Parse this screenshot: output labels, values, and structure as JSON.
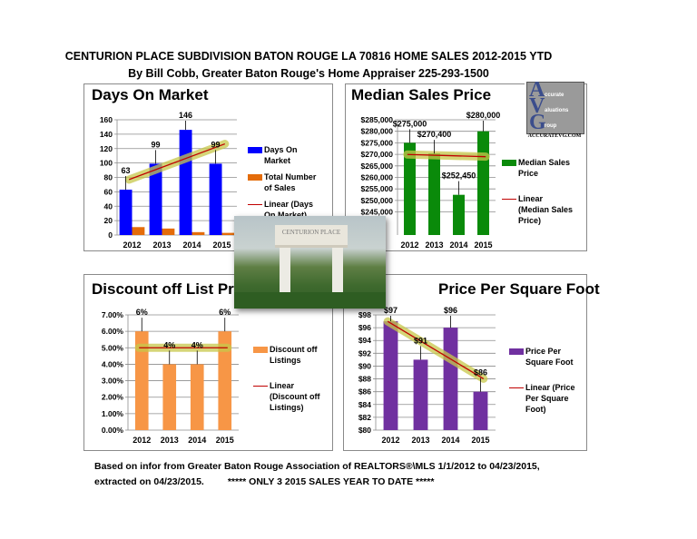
{
  "header": {
    "title": "CENTURION PLACE SUBDIVISION BATON ROUGE LA 70816 HOME SALES 2012-2015 YTD",
    "subtitle": "By Bill Cobb, Greater Baton Rouge's Home Appraiser 225-293-1500"
  },
  "footer": {
    "line1": "Based on infor from Greater Baton Rouge Association of REALTORS®\\MLS 1/1/2012 to 04/23/2015,",
    "line2a": "extracted on 04/23/2015.",
    "line2b": "***** ONLY 3 2015 SALES YEAR TO DATE *****"
  },
  "photo": {
    "sign_text": "CENTURION PLACE"
  },
  "logo": {
    "letters": [
      "A",
      "V",
      "G"
    ],
    "words": [
      "ccurate",
      "aluations",
      "roup"
    ],
    "url": "ACCURATEVG.COM"
  },
  "chart_data": [
    {
      "type": "bar",
      "title": "Days On Market",
      "categories": [
        "2012",
        "2013",
        "2014",
        "2015"
      ],
      "ylim": [
        0,
        160
      ],
      "yticks": [
        "0",
        "20",
        "40",
        "60",
        "80",
        "100",
        "120",
        "140",
        "160"
      ],
      "ytick_values": [
        0,
        20,
        40,
        60,
        80,
        100,
        120,
        140,
        160
      ],
      "grid": true,
      "legend": "right",
      "series": [
        {
          "name": "Days On Market",
          "values": [
            63,
            99,
            146,
            99
          ],
          "color": "#0000ff",
          "data_labels": [
            "63",
            "99",
            "146",
            "99"
          ]
        },
        {
          "name": "Total Number of Sales",
          "values": [
            11,
            9,
            4,
            3
          ],
          "color": "#e46c0a"
        }
      ],
      "trendline": {
        "name": "Linear (Days On Market)",
        "type": "linear",
        "of_series": 0,
        "color": "#c00000",
        "glow": "#c8c84a"
      }
    },
    {
      "type": "bar",
      "title": "Median Sales Price",
      "categories": [
        "2012",
        "2013",
        "2014",
        "2015"
      ],
      "ylim": [
        235000,
        285000
      ],
      "yticks": [
        "$245,000",
        "$250,000",
        "$255,000",
        "$260,000",
        "$265,000",
        "$270,000",
        "$275,000",
        "$280,000",
        "$285,000"
      ],
      "ytick_values": [
        245000,
        250000,
        255000,
        260000,
        265000,
        270000,
        275000,
        280000,
        285000
      ],
      "grid": true,
      "legend": "right",
      "series": [
        {
          "name": "Median Sales Price",
          "values": [
            275000,
            270400,
            252450,
            280000
          ],
          "color": "#0a8a0a",
          "data_labels": [
            "$275,000",
            "$270,400",
            "$252,450",
            "$280,000"
          ]
        }
      ],
      "trendline": {
        "name": "Linear (Median Sales Price)",
        "type": "linear",
        "of_series": 0,
        "color": "#c00000",
        "glow": "#c8c84a"
      }
    },
    {
      "type": "bar",
      "title": "Discount off List Price",
      "categories": [
        "2012",
        "2013",
        "2014",
        "2015"
      ],
      "ylim": [
        0,
        7
      ],
      "yticks": [
        "0.00%",
        "1.00%",
        "2.00%",
        "3.00%",
        "4.00%",
        "5.00%",
        "6.00%",
        "7.00%"
      ],
      "ytick_values": [
        0,
        1,
        2,
        3,
        4,
        5,
        6,
        7
      ],
      "grid": true,
      "legend": "right",
      "series": [
        {
          "name": "Discount off Listings",
          "values": [
            6,
            4,
            4,
            6
          ],
          "color": "#f79646",
          "data_labels": [
            "6%",
            "4%",
            "4%",
            "6%"
          ]
        }
      ],
      "trendline": {
        "name": "Linear (Discount off Listings)",
        "type": "linear",
        "of_series": 0,
        "color": "#c00000",
        "glow": "#c8c84a"
      }
    },
    {
      "type": "bar",
      "title": "Price Per Square Foot",
      "categories": [
        "2012",
        "2013",
        "2014",
        "2015"
      ],
      "ylim": [
        80,
        98
      ],
      "yticks": [
        "$80",
        "$82",
        "$84",
        "$86",
        "$88",
        "$90",
        "$92",
        "$94",
        "$96",
        "$98"
      ],
      "ytick_values": [
        80,
        82,
        84,
        86,
        88,
        90,
        92,
        94,
        96,
        98
      ],
      "grid": true,
      "legend": "right",
      "series": [
        {
          "name": "Price Per Square Foot",
          "values": [
            97,
            91,
            96,
            86
          ],
          "color": "#7030a0",
          "data_labels": [
            "$97",
            "$91",
            "$96",
            "$86"
          ]
        }
      ],
      "trendline": {
        "name": "Linear (Price Per Square Foot)",
        "type": "linear",
        "of_series": 0,
        "color": "#c00000",
        "glow": "#c8c84a"
      }
    }
  ]
}
